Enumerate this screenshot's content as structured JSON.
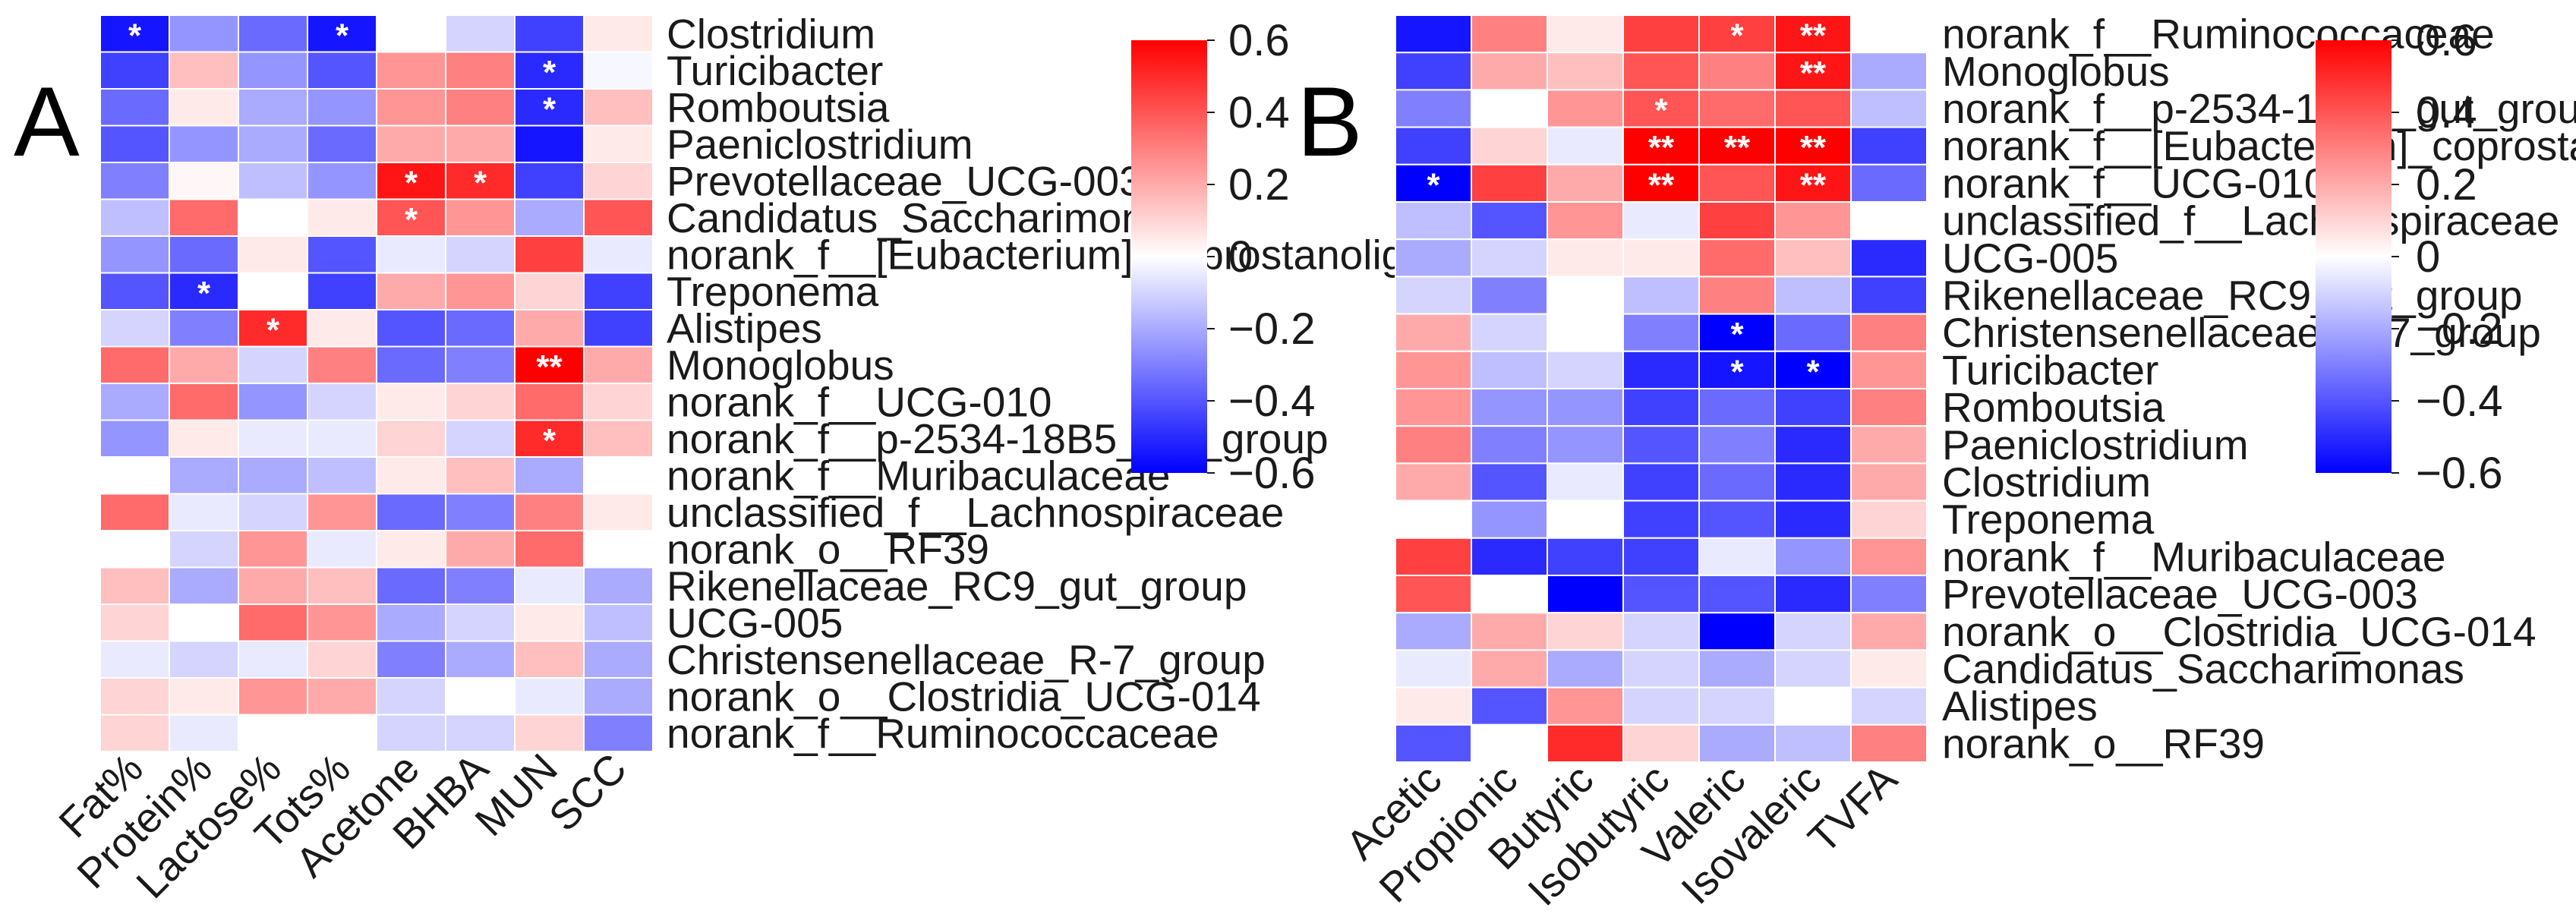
{
  "chart_data": [
    {
      "type": "heatmap",
      "panel_label": "A",
      "columns": [
        "Fat%",
        "Protein%",
        "Lactose%",
        "Tots%",
        "Acetone",
        "BHBA",
        "MUN",
        "SCC"
      ],
      "rows": [
        "Clostridium",
        "Turicibacter",
        "Romboutsia",
        "Paeniclostridium",
        "Prevotellaceae_UCG-003",
        "Candidatus_Saccharimonas",
        "norank_f__[Eubacterium]_coprostanoligenes_group",
        "Treponema",
        "Alistipes",
        "Monoglobus",
        "norank_f__UCG-010",
        "norank_f__p-2534-18B5_gut_group",
        "norank_f__Muribaculaceae",
        "unclassified_f__Lachnospiraceae",
        "norank_o__RF39",
        "Rikenellaceae_RC9_gut_group",
        "UCG-005",
        "Christensenellaceae_R-7_group",
        "norank_o__Clostridia_UCG-014",
        "norank_f__Ruminococcaceae"
      ],
      "values": [
        [
          -0.55,
          -0.25,
          -0.35,
          -0.55,
          0.0,
          -0.1,
          -0.45,
          0.05
        ],
        [
          -0.45,
          0.15,
          -0.25,
          -0.4,
          0.25,
          0.3,
          -0.5,
          -0.02
        ],
        [
          -0.35,
          0.05,
          -0.2,
          -0.25,
          0.25,
          0.3,
          -0.5,
          0.15
        ],
        [
          -0.4,
          -0.25,
          -0.2,
          -0.35,
          0.2,
          0.2,
          -0.55,
          0.05
        ],
        [
          -0.3,
          0.02,
          -0.15,
          -0.25,
          0.55,
          0.5,
          -0.45,
          0.1
        ],
        [
          -0.15,
          0.35,
          0.0,
          0.05,
          0.4,
          0.25,
          -0.2,
          0.4
        ],
        [
          -0.25,
          -0.35,
          0.05,
          -0.4,
          -0.05,
          -0.1,
          0.45,
          -0.05
        ],
        [
          -0.4,
          -0.5,
          0.0,
          -0.45,
          0.2,
          0.25,
          0.1,
          -0.45
        ],
        [
          -0.1,
          -0.3,
          0.5,
          0.05,
          -0.4,
          -0.35,
          0.2,
          -0.45
        ],
        [
          0.35,
          0.2,
          -0.1,
          0.3,
          -0.35,
          -0.3,
          0.6,
          0.2
        ],
        [
          -0.2,
          0.35,
          -0.25,
          -0.1,
          0.05,
          0.1,
          0.35,
          0.1
        ],
        [
          -0.25,
          0.05,
          -0.05,
          -0.05,
          0.1,
          -0.1,
          0.5,
          0.15
        ],
        [
          0.0,
          -0.2,
          -0.2,
          -0.15,
          0.05,
          0.15,
          -0.2,
          0.0
        ],
        [
          0.35,
          -0.05,
          -0.1,
          0.25,
          -0.35,
          -0.3,
          0.3,
          0.05
        ],
        [
          0.0,
          -0.1,
          0.25,
          -0.05,
          0.05,
          0.2,
          0.35,
          0.0
        ],
        [
          0.15,
          -0.2,
          0.2,
          0.15,
          -0.35,
          -0.3,
          -0.05,
          -0.2
        ],
        [
          0.1,
          0.0,
          0.35,
          0.25,
          -0.2,
          -0.1,
          0.05,
          -0.15
        ],
        [
          -0.05,
          -0.1,
          -0.05,
          0.1,
          -0.3,
          -0.2,
          0.15,
          -0.2
        ],
        [
          0.1,
          0.05,
          0.25,
          0.2,
          -0.1,
          0.0,
          -0.05,
          -0.2
        ],
        [
          0.1,
          -0.05,
          0.0,
          0.0,
          -0.1,
          -0.1,
          0.1,
          -0.3
        ]
      ],
      "significance": [
        [
          "*",
          "",
          "",
          "*",
          "",
          "",
          "",
          ""
        ],
        [
          "",
          "",
          "",
          "",
          "",
          "",
          "*",
          ""
        ],
        [
          "",
          "",
          "",
          "",
          "",
          "",
          "*",
          ""
        ],
        [
          "",
          "",
          "",
          "",
          "",
          "",
          "",
          ""
        ],
        [
          "",
          "",
          "",
          "",
          "*",
          "*",
          "",
          ""
        ],
        [
          "",
          "",
          "",
          "",
          "*",
          "",
          "",
          ""
        ],
        [
          "",
          "",
          "",
          "",
          "",
          "",
          "",
          ""
        ],
        [
          "",
          "*",
          "",
          "",
          "",
          "",
          "",
          ""
        ],
        [
          "",
          "",
          "*",
          "",
          "",
          "",
          "",
          ""
        ],
        [
          "",
          "",
          "",
          "",
          "",
          "",
          "**",
          ""
        ],
        [
          "",
          "",
          "",
          "",
          "",
          "",
          "",
          ""
        ],
        [
          "",
          "",
          "",
          "",
          "",
          "",
          "*",
          ""
        ],
        [
          "",
          "",
          "",
          "",
          "",
          "",
          "",
          ""
        ],
        [
          "",
          "",
          "",
          "",
          "",
          "",
          "",
          ""
        ],
        [
          "",
          "",
          "",
          "",
          "",
          "",
          "",
          ""
        ],
        [
          "",
          "",
          "",
          "",
          "",
          "",
          "",
          ""
        ],
        [
          "",
          "",
          "",
          "",
          "",
          "",
          "",
          ""
        ],
        [
          "",
          "",
          "",
          "",
          "",
          "",
          "",
          ""
        ],
        [
          "",
          "",
          "",
          "",
          "",
          "",
          "",
          ""
        ],
        [
          "",
          "",
          "",
          "",
          "",
          "",
          "",
          ""
        ]
      ],
      "colorbar": {
        "range": [
          -0.6,
          0.6
        ],
        "ticks": [
          "0.6",
          "0.4",
          "0.2",
          "0",
          "−0.2",
          "−0.4",
          "−0.6"
        ]
      }
    },
    {
      "type": "heatmap",
      "panel_label": "B",
      "columns": [
        "Acetic",
        "Propionic",
        "Butyric",
        "Isobutyric",
        "Valeric",
        "Isovaleric",
        "TVFA"
      ],
      "rows": [
        "norank_f__Ruminococcaceae",
        "Monoglobus",
        "norank_f__p-2534-18B5_gut_group",
        "norank_f__[Eubacterium]_coprostanoligenes_group",
        "norank_f__UCG-010",
        "unclassified_f__Lachnospiraceae",
        "UCG-005",
        "Rikenellaceae_RC9_gut_group",
        "Christensenellaceae_R-7_group",
        "Turicibacter",
        "Romboutsia",
        "Paeniclostridium",
        "Clostridium",
        "Treponema",
        "norank_f__Muribaculaceae",
        "Prevotellaceae_UCG-003",
        "norank_o__Clostridia_UCG-014",
        "Candidatus_Saccharimonas",
        "Alistipes",
        "norank_o__RF39"
      ],
      "values": [
        [
          -0.55,
          0.3,
          0.05,
          0.45,
          0.45,
          0.55,
          0.0
        ],
        [
          -0.45,
          0.2,
          0.15,
          0.4,
          0.3,
          0.55,
          -0.2
        ],
        [
          -0.3,
          0.0,
          0.25,
          0.4,
          0.35,
          0.4,
          -0.15
        ],
        [
          -0.45,
          0.1,
          -0.05,
          0.6,
          0.6,
          0.6,
          -0.45
        ],
        [
          -0.6,
          0.45,
          0.2,
          0.6,
          0.4,
          0.55,
          -0.35
        ],
        [
          -0.15,
          -0.4,
          0.25,
          -0.05,
          0.45,
          0.25,
          0.0
        ],
        [
          -0.2,
          -0.1,
          0.05,
          0.05,
          0.35,
          0.15,
          -0.5
        ],
        [
          -0.1,
          -0.3,
          0.0,
          -0.15,
          0.3,
          -0.15,
          -0.45
        ],
        [
          0.2,
          -0.1,
          0.0,
          -0.3,
          -0.6,
          -0.35,
          0.3
        ],
        [
          0.25,
          -0.15,
          -0.1,
          -0.5,
          -0.55,
          -0.6,
          0.25
        ],
        [
          0.25,
          -0.25,
          -0.25,
          -0.45,
          -0.35,
          -0.45,
          0.3
        ],
        [
          0.3,
          -0.3,
          -0.25,
          -0.4,
          -0.3,
          -0.5,
          0.2
        ],
        [
          0.2,
          -0.4,
          -0.05,
          -0.45,
          -0.35,
          -0.5,
          0.2
        ],
        [
          0.0,
          -0.25,
          0.0,
          -0.45,
          -0.4,
          -0.5,
          0.1
        ],
        [
          0.45,
          -0.5,
          -0.45,
          -0.45,
          -0.05,
          -0.25,
          0.25
        ],
        [
          0.4,
          0.0,
          -0.6,
          -0.4,
          -0.4,
          -0.5,
          -0.3
        ],
        [
          -0.2,
          0.2,
          0.1,
          -0.1,
          -0.6,
          -0.1,
          0.2
        ],
        [
          -0.05,
          0.2,
          -0.2,
          -0.1,
          -0.2,
          -0.1,
          0.05
        ],
        [
          0.05,
          -0.4,
          0.25,
          -0.1,
          -0.1,
          0.0,
          -0.1
        ],
        [
          -0.4,
          0.0,
          0.5,
          0.1,
          -0.2,
          -0.15,
          0.3
        ]
      ],
      "significance": [
        [
          "",
          "",
          "",
          "",
          "*",
          "**",
          ""
        ],
        [
          "",
          "",
          "",
          "",
          "",
          "**",
          ""
        ],
        [
          "",
          "",
          "",
          "*",
          "",
          "",
          ""
        ],
        [
          "",
          "",
          "",
          "**",
          "**",
          "**",
          ""
        ],
        [
          "*",
          "",
          "",
          "**",
          "",
          "**",
          ""
        ],
        [
          "",
          "",
          "",
          "",
          "",
          "",
          ""
        ],
        [
          "",
          "",
          "",
          "",
          "",
          "",
          ""
        ],
        [
          "",
          "",
          "",
          "",
          "",
          "",
          ""
        ],
        [
          "",
          "",
          "",
          "",
          "*",
          "",
          ""
        ],
        [
          "",
          "",
          "",
          "",
          "*",
          "*",
          ""
        ],
        [
          "",
          "",
          "",
          "",
          "",
          "",
          ""
        ],
        [
          "",
          "",
          "",
          "",
          "",
          "",
          ""
        ],
        [
          "",
          "",
          "",
          "",
          "",
          "",
          ""
        ],
        [
          "",
          "",
          "",
          "",
          "",
          "",
          ""
        ],
        [
          "",
          "",
          "",
          "",
          "",
          "",
          ""
        ],
        [
          "",
          "",
          "",
          "",
          "",
          "",
          ""
        ],
        [
          "",
          "",
          "",
          "",
          "",
          "",
          ""
        ],
        [
          "",
          "",
          "",
          "",
          "",
          "",
          ""
        ],
        [
          "",
          "",
          "",
          "",
          "",
          "",
          ""
        ],
        [
          "",
          "",
          "",
          "",
          "",
          "",
          ""
        ]
      ],
      "colorbar": {
        "range": [
          -0.6,
          0.6
        ],
        "ticks": [
          "0.6",
          "0.4",
          "0.2",
          "0",
          "−0.2",
          "−0.4",
          "−0.6"
        ]
      }
    }
  ]
}
